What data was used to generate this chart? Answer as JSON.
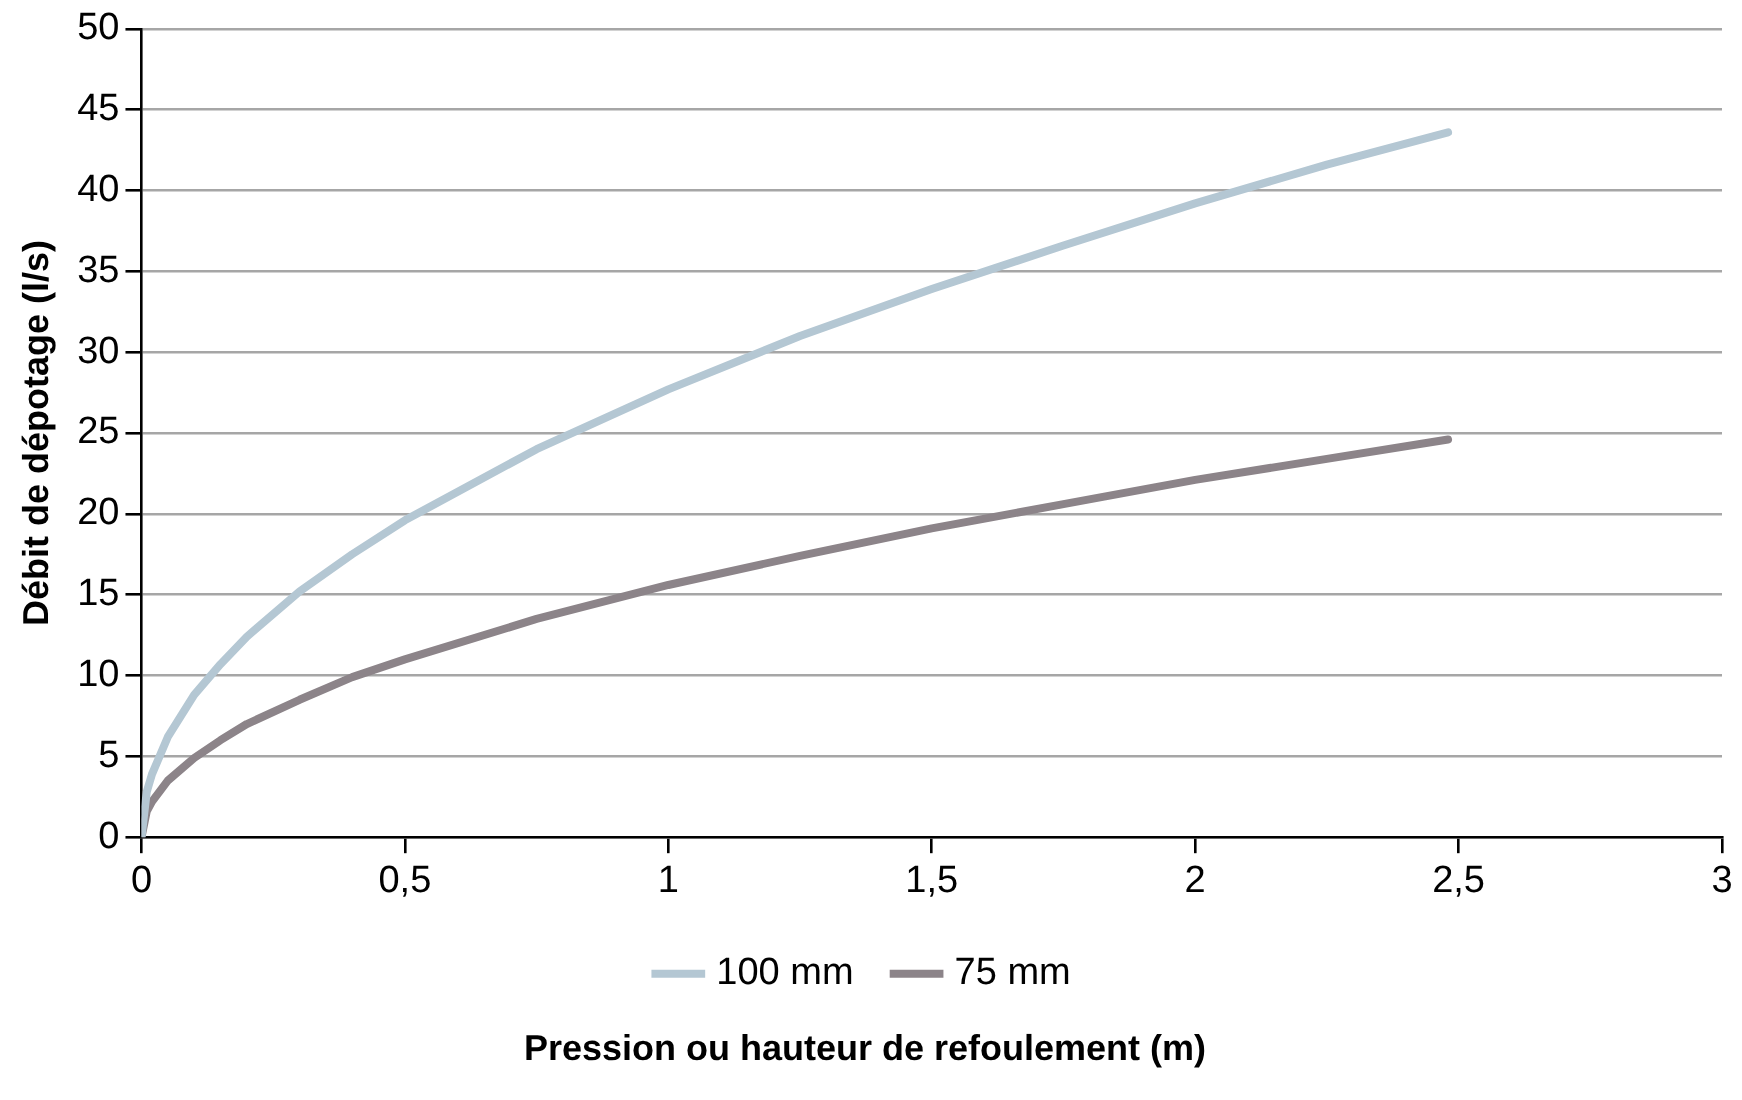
{
  "chart_data": {
    "type": "line",
    "xlabel": "Pression ou hauteur de refoulement (m)",
    "ylabel": "Débit de dépotage (l/s)",
    "xlim": [
      0,
      3
    ],
    "xticks": [
      0,
      {
        "value": 0.5,
        "label": "0,5"
      },
      1,
      {
        "value": 1.5,
        "label": "1,5"
      },
      2,
      {
        "value": 2.5,
        "label": "2,5"
      },
      3
    ],
    "ylim": [
      0,
      50
    ],
    "yticks": [
      0,
      5,
      10,
      15,
      20,
      25,
      30,
      35,
      40,
      45,
      50
    ],
    "grid": "y",
    "legend": "bottom",
    "marker": "none",
    "line_style": "solid",
    "series": [
      {
        "name": "100 mm",
        "color": "#b4c7d3",
        "x": [
          0,
          0.01,
          0.02,
          0.05,
          0.1,
          0.15,
          0.2,
          0.3,
          0.4,
          0.5,
          0.75,
          1,
          1.25,
          1.5,
          1.75,
          2,
          2.25,
          2.48
        ],
        "values": [
          0,
          2.8,
          3.9,
          6.2,
          8.8,
          10.7,
          12.4,
          15.2,
          17.5,
          19.6,
          24.0,
          27.7,
          31.0,
          33.9,
          36.6,
          39.2,
          41.6,
          43.6
        ]
      },
      {
        "name": "75 mm",
        "color": "#8c8489",
        "x": [
          0,
          0.01,
          0.02,
          0.05,
          0.1,
          0.15,
          0.2,
          0.3,
          0.4,
          0.5,
          0.75,
          1,
          1.25,
          1.5,
          1.75,
          2,
          2.25,
          2.48
        ],
        "values": [
          0,
          1.6,
          2.2,
          3.5,
          4.9,
          6.0,
          7.0,
          8.5,
          9.9,
          11.0,
          13.5,
          15.6,
          17.4,
          19.1,
          20.6,
          22.1,
          23.4,
          24.6
        ]
      }
    ]
  }
}
